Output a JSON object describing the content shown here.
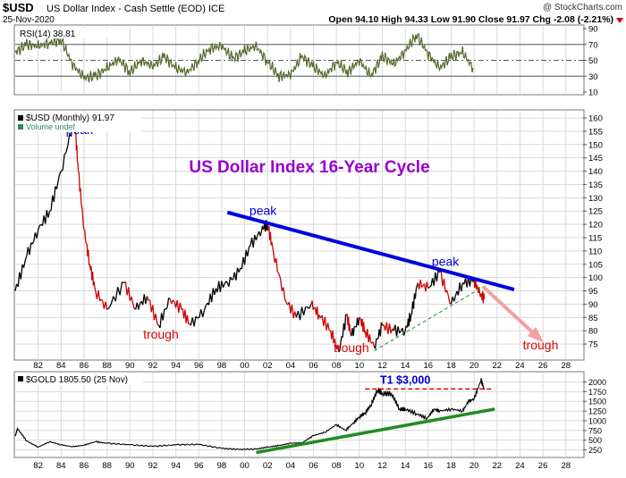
{
  "header": {
    "symbol": "$USD",
    "description": "US Dollar Index - Cash Settle (EOD) ICE",
    "date": "25-Nov-2020",
    "brand": "@ StockCharts.com",
    "ohlc": "Open 94.10  High 94.33  Low 91.90  Close 91.97  Chg -2.08 (-2.21%)"
  },
  "colors": {
    "panel_bg": "#ffffff",
    "grid": "#d8d8d8",
    "price_up": "#000000",
    "price_down": "#cc0000",
    "annotation_blue": "#0000dd",
    "annotation_red": "#dd0000",
    "title_purple": "#9900cc",
    "trendline_green": "#228b22",
    "arrow_pink": "#f4a0a0",
    "rsi_line": "#556b2f"
  },
  "chart_data": [
    {
      "type": "line",
      "title": "RSI(14) 38.81",
      "ylim": [
        10,
        90
      ],
      "reference_lines": [
        70,
        50,
        30
      ],
      "y_ticks": [
        "90",
        "70",
        "50",
        "30",
        "10"
      ],
      "x": [
        1980,
        1981,
        1982,
        1983,
        1984,
        1985,
        1986,
        1987,
        1988,
        1989,
        1990,
        1991,
        1992,
        1993,
        1994,
        1995,
        1996,
        1997,
        1998,
        1999,
        2000,
        2001,
        2002,
        2003,
        2004,
        2005,
        2006,
        2007,
        2008,
        2009,
        2010,
        2011,
        2012,
        2013,
        2014,
        2015,
        2016,
        2017,
        2018,
        2019,
        2020
      ],
      "values": [
        60,
        70,
        68,
        72,
        76,
        45,
        28,
        30,
        40,
        52,
        35,
        50,
        42,
        55,
        40,
        35,
        50,
        65,
        68,
        52,
        62,
        68,
        48,
        30,
        32,
        55,
        42,
        30,
        48,
        35,
        50,
        30,
        55,
        45,
        62,
        82,
        58,
        40,
        55,
        60,
        38
      ]
    },
    {
      "type": "line",
      "title": "US Dollar Index 16-Year Cycle",
      "legend": [
        "$USD (Monthly) 91.97",
        "Volume undef"
      ],
      "ylim": [
        70,
        160
      ],
      "y_ticks": [
        "160",
        "155",
        "150",
        "145",
        "140",
        "135",
        "130",
        "125",
        "120",
        "115",
        "110",
        "105",
        "100",
        "95",
        "90",
        "85",
        "80",
        "75"
      ],
      "x_ticks": [
        "82",
        "84",
        "86",
        "88",
        "90",
        "92",
        "94",
        "96",
        "98",
        "00",
        "02",
        "04",
        "06",
        "08",
        "10",
        "12",
        "14",
        "16",
        "18",
        "20",
        "22",
        "24",
        "26",
        "28"
      ],
      "series": [
        {
          "x": [
            1980.0,
            1981.0,
            1982.0,
            1983.0,
            1984.0,
            1985.17,
            1985.5,
            1986.0,
            1986.5,
            1987.0,
            1988.0,
            1989.5,
            1990.5,
            1991.5,
            1992.5,
            1993.5,
            1994.5,
            1995.3,
            1996.5,
            1997.5,
            1998.5,
            1999.5,
            2000.5,
            2001.5,
            2002.0,
            2002.5,
            2003.5,
            2004.5,
            2005.8,
            2006.5,
            2007.5,
            2008.2,
            2008.9,
            2009.3,
            2010.0,
            2010.5,
            2011.3,
            2012.0,
            2013.0,
            2014.0,
            2014.5,
            2015.1,
            2016.0,
            2017.0,
            2018.0,
            2019.0,
            2020.0,
            2020.5,
            2020.9
          ],
          "values": [
            95,
            108,
            118,
            125,
            140,
            160,
            140,
            118,
            105,
            95,
            88,
            98,
            88,
            93,
            82,
            92,
            88,
            82,
            88,
            96,
            98,
            102,
            112,
            118,
            120,
            110,
            92,
            85,
            90,
            86,
            80,
            72,
            86,
            78,
            85,
            80,
            74,
            82,
            80,
            80,
            86,
            98,
            96,
            102,
            90,
            98,
            99,
            94,
            92
          ]
        }
      ],
      "annotations": [
        {
          "text": "peak",
          "x": 1985.6,
          "y": 154,
          "color": "blue"
        },
        {
          "text": "peak",
          "x": 2001.6,
          "y": 123.5,
          "color": "blue"
        },
        {
          "text": "peak",
          "x": 2017.5,
          "y": 104.5,
          "color": "blue"
        },
        {
          "text": "ugh",
          "x": 1977.6,
          "y": 96,
          "color": "red"
        },
        {
          "text": "trough",
          "x": 1912.5,
          "y": 77,
          "color": "red"
        },
        {
          "text": "trough",
          "x": 1992.7,
          "y": 77,
          "color": "red"
        },
        {
          "text": "trough",
          "x": 2009.3,
          "y": 72,
          "color": "red"
        },
        {
          "text": "trough",
          "x": 2025.8,
          "y": 73,
          "color": "red"
        }
      ],
      "trendlines": [
        {
          "name": "peak-trendline",
          "from": [
            1998.5,
            124.5
          ],
          "to": [
            2023.5,
            95.5
          ],
          "color": "blue",
          "style": "solid"
        },
        {
          "name": "trough-trendline",
          "from": [
            2011.3,
            72.5
          ],
          "to": [
            2021.2,
            97.5
          ],
          "color": "green",
          "style": "dashed"
        },
        {
          "name": "projection-arrow",
          "from": [
            2020.8,
            96.5
          ],
          "to": [
            2025.7,
            77
          ],
          "color": "pink",
          "style": "arrow"
        }
      ]
    },
    {
      "type": "line",
      "title": "$GOLD 1805.50 (25 Nov)",
      "ylim": [
        100,
        2150
      ],
      "y_ticks": [
        "2000",
        "1750",
        "1500",
        "1250",
        "1000",
        "750",
        "500",
        "250"
      ],
      "x_ticks": [
        "82",
        "84",
        "86",
        "88",
        "90",
        "92",
        "94",
        "96",
        "98",
        "00",
        "02",
        "04",
        "06",
        "08",
        "10",
        "12",
        "14",
        "16",
        "18",
        "20",
        "22",
        "24",
        "26",
        "28"
      ],
      "x": [
        1980.0,
        1980.2,
        1981.0,
        1982.0,
        1983.0,
        1984.0,
        1985.0,
        1986.0,
        1987.0,
        1988.0,
        1990.0,
        1992.0,
        1994.0,
        1996.0,
        1998.0,
        1999.5,
        2001.0,
        2002.0,
        2003.0,
        2004.0,
        2005.0,
        2006.0,
        2007.0,
        2008.0,
        2008.8,
        2009.5,
        2010.0,
        2010.5,
        2011.0,
        2011.6,
        2012.0,
        2012.8,
        2013.5,
        2014.0,
        2015.0,
        2015.9,
        2016.5,
        2017.0,
        2018.0,
        2019.0,
        2019.5,
        2020.0,
        2020.6,
        2020.9
      ],
      "values": [
        600,
        800,
        480,
        320,
        460,
        380,
        330,
        370,
        460,
        420,
        380,
        340,
        380,
        390,
        290,
        260,
        270,
        320,
        360,
        420,
        430,
        620,
        700,
        900,
        750,
        950,
        1100,
        1200,
        1400,
        1800,
        1700,
        1700,
        1300,
        1300,
        1180,
        1060,
        1300,
        1250,
        1300,
        1250,
        1500,
        1560,
        2050,
        1805
      ],
      "annotations": [
        {
          "text": "T1 $3,000",
          "x": 2014.0,
          "y": 1950,
          "color": "blue"
        }
      ],
      "trendlines": [
        {
          "name": "gold-support",
          "from": [
            2001.0,
            180
          ],
          "to": [
            2021.8,
            1300
          ],
          "color": "green",
          "style": "solid"
        },
        {
          "name": "gold-resistance",
          "from": [
            2010.5,
            1820
          ],
          "to": [
            2021.5,
            1820
          ],
          "color": "red",
          "style": "dashed"
        }
      ]
    }
  ]
}
